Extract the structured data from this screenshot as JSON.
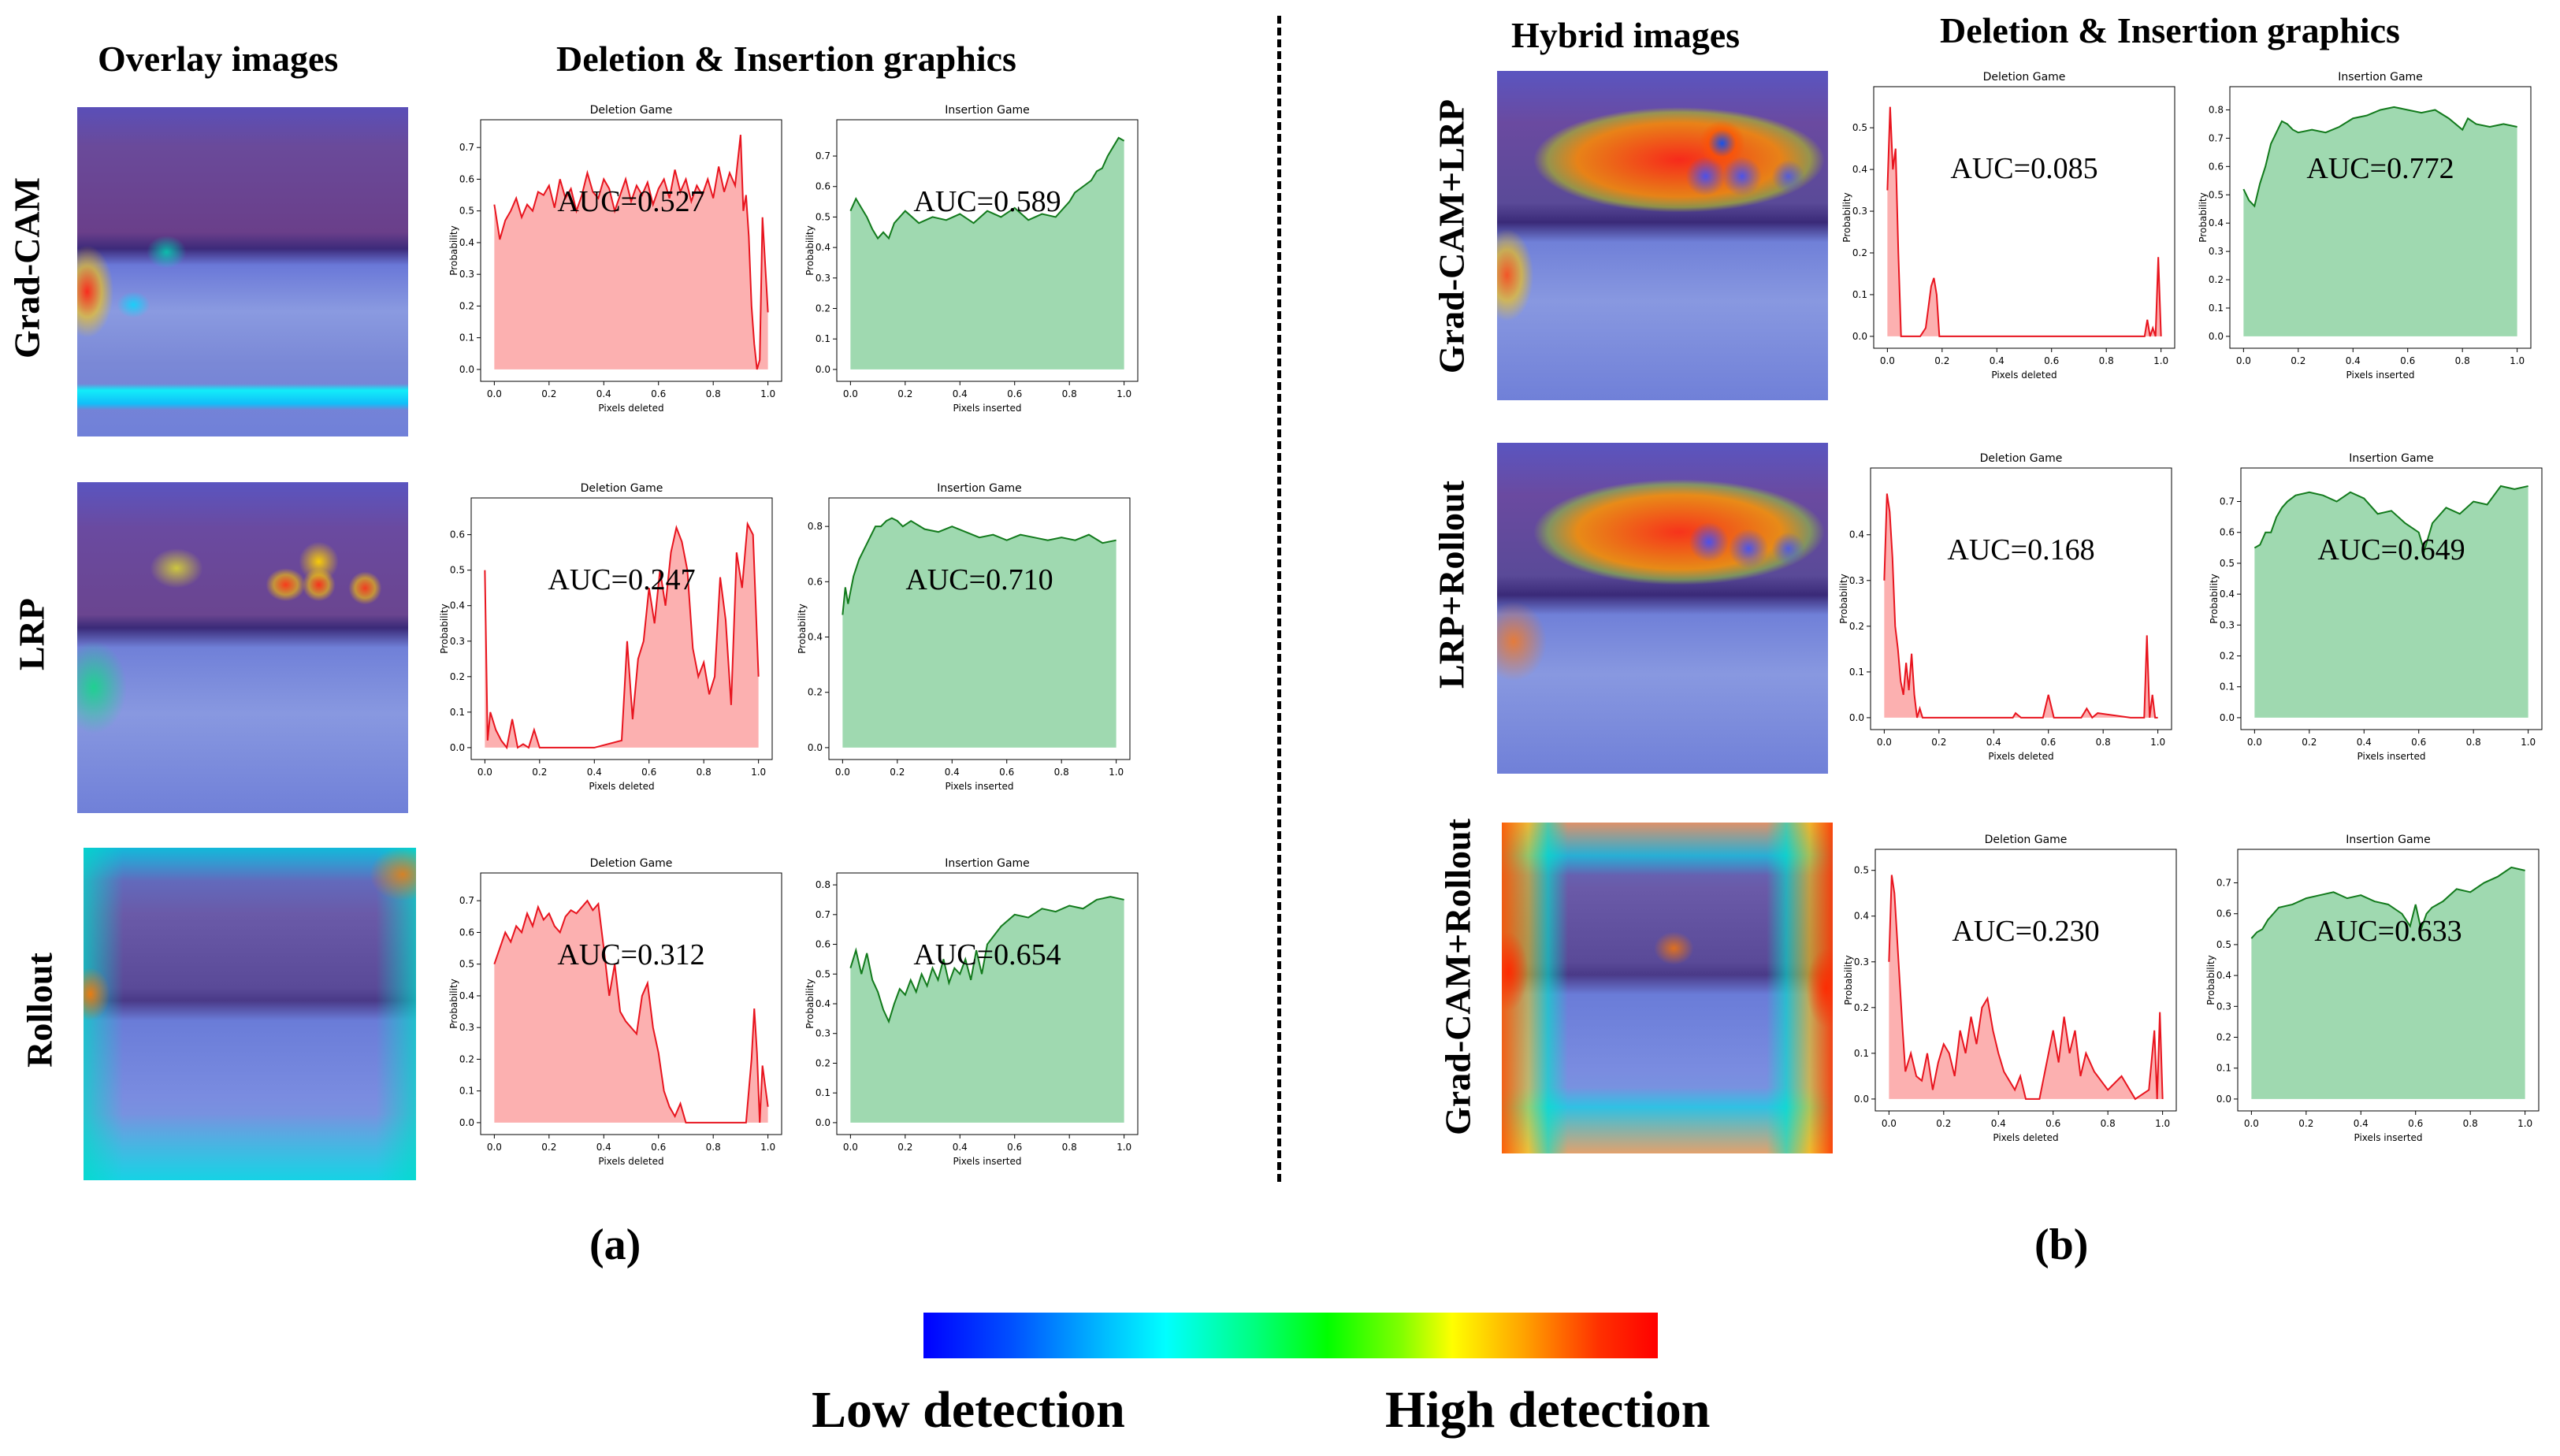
{
  "headers": {
    "overlay": "Overlay images",
    "deletion_insertion_a": "Deletion & Insertion graphics",
    "hybrid": "Hybrid images",
    "deletion_insertion_b": "Deletion & Insertion graphics"
  },
  "row_labels": {
    "gradcam": "Grad-CAM",
    "lrp": "LRP",
    "rollout": "Rollout",
    "gradcam_lrp": "Grad-CAM+LRP",
    "lrp_rollout": "LRP+Rollout",
    "gradcam_rollout": "Grad-CAM+Rollout"
  },
  "panel_labels": {
    "a": "(a)",
    "b": "(b)"
  },
  "colorbar": {
    "low": "Low detection",
    "high": "High detection"
  },
  "colors": {
    "deletion_line": "#e8141e",
    "deletion_fill": "#fcb0b0",
    "insertion_line": "#127a1c",
    "insertion_fill": "#9fd9b0"
  },
  "chart_data": [
    {
      "id": "del_gradcam",
      "type": "area",
      "title": "Deletion Game",
      "xlabel": "Pixels deleted",
      "ylabel": "Probability",
      "auc": "AUC=0.527",
      "xlim": [
        0,
        1
      ],
      "ylim": [
        0,
        0.75
      ],
      "yticks": [
        0.0,
        0.1,
        0.2,
        0.3,
        0.4,
        0.5,
        0.6,
        0.7
      ],
      "xticks": [
        0.0,
        0.2,
        0.4,
        0.6,
        0.8,
        1.0
      ],
      "x": [
        0,
        0.02,
        0.04,
        0.06,
        0.08,
        0.1,
        0.12,
        0.14,
        0.16,
        0.18,
        0.2,
        0.22,
        0.24,
        0.26,
        0.28,
        0.3,
        0.32,
        0.34,
        0.36,
        0.38,
        0.4,
        0.42,
        0.44,
        0.46,
        0.48,
        0.5,
        0.52,
        0.54,
        0.56,
        0.58,
        0.6,
        0.62,
        0.64,
        0.66,
        0.68,
        0.7,
        0.72,
        0.74,
        0.76,
        0.78,
        0.8,
        0.82,
        0.84,
        0.86,
        0.88,
        0.9,
        0.91,
        0.92,
        0.93,
        0.94,
        0.95,
        0.96,
        0.97,
        0.98,
        1.0
      ],
      "values": [
        0.52,
        0.41,
        0.47,
        0.5,
        0.54,
        0.48,
        0.52,
        0.5,
        0.56,
        0.55,
        0.58,
        0.51,
        0.6,
        0.54,
        0.57,
        0.5,
        0.55,
        0.62,
        0.56,
        0.54,
        0.6,
        0.57,
        0.5,
        0.55,
        0.6,
        0.53,
        0.58,
        0.55,
        0.59,
        0.52,
        0.57,
        0.6,
        0.54,
        0.63,
        0.56,
        0.6,
        0.53,
        0.58,
        0.55,
        0.6,
        0.54,
        0.64,
        0.56,
        0.62,
        0.58,
        0.74,
        0.5,
        0.55,
        0.42,
        0.2,
        0.08,
        0.0,
        0.03,
        0.48,
        0.18
      ]
    },
    {
      "id": "ins_gradcam",
      "type": "area",
      "title": "Insertion Game",
      "xlabel": "Pixels inserted",
      "ylabel": "Probability",
      "auc": "AUC=0.589",
      "xlim": [
        0,
        1
      ],
      "ylim": [
        0,
        0.78
      ],
      "yticks": [
        0.0,
        0.1,
        0.2,
        0.3,
        0.4,
        0.5,
        0.6,
        0.7
      ],
      "xticks": [
        0.0,
        0.2,
        0.4,
        0.6,
        0.8,
        1.0
      ],
      "x": [
        0,
        0.02,
        0.04,
        0.06,
        0.08,
        0.1,
        0.12,
        0.14,
        0.16,
        0.18,
        0.2,
        0.25,
        0.3,
        0.35,
        0.4,
        0.45,
        0.5,
        0.55,
        0.6,
        0.65,
        0.7,
        0.75,
        0.8,
        0.82,
        0.85,
        0.88,
        0.9,
        0.92,
        0.94,
        0.96,
        0.98,
        1.0
      ],
      "values": [
        0.52,
        0.56,
        0.53,
        0.5,
        0.46,
        0.43,
        0.45,
        0.43,
        0.48,
        0.5,
        0.52,
        0.48,
        0.5,
        0.49,
        0.51,
        0.48,
        0.52,
        0.5,
        0.53,
        0.49,
        0.51,
        0.5,
        0.55,
        0.58,
        0.6,
        0.62,
        0.65,
        0.66,
        0.7,
        0.73,
        0.76,
        0.75
      ]
    },
    {
      "id": "del_lrp",
      "type": "area",
      "title": "Deletion Game",
      "xlabel": "Pixels deleted",
      "ylabel": "Probability",
      "auc": "AUC=0.247",
      "xlim": [
        0,
        1
      ],
      "ylim": [
        0,
        0.67
      ],
      "yticks": [
        0.0,
        0.1,
        0.2,
        0.3,
        0.4,
        0.5,
        0.6
      ],
      "xticks": [
        0.0,
        0.2,
        0.4,
        0.6,
        0.8,
        1.0
      ],
      "x": [
        0,
        0.01,
        0.02,
        0.04,
        0.06,
        0.08,
        0.1,
        0.12,
        0.14,
        0.16,
        0.18,
        0.2,
        0.3,
        0.4,
        0.5,
        0.52,
        0.54,
        0.56,
        0.58,
        0.6,
        0.62,
        0.64,
        0.66,
        0.68,
        0.7,
        0.72,
        0.74,
        0.76,
        0.78,
        0.8,
        0.82,
        0.84,
        0.86,
        0.88,
        0.9,
        0.92,
        0.94,
        0.96,
        0.98,
        1.0
      ],
      "values": [
        0.5,
        0.02,
        0.1,
        0.05,
        0.02,
        0.0,
        0.08,
        0.0,
        0.01,
        0.0,
        0.05,
        0.0,
        0.0,
        0.0,
        0.02,
        0.3,
        0.08,
        0.25,
        0.3,
        0.45,
        0.35,
        0.5,
        0.4,
        0.55,
        0.62,
        0.58,
        0.5,
        0.28,
        0.2,
        0.24,
        0.15,
        0.2,
        0.48,
        0.36,
        0.12,
        0.55,
        0.45,
        0.63,
        0.6,
        0.2
      ]
    },
    {
      "id": "ins_lrp",
      "type": "area",
      "title": "Insertion Game",
      "xlabel": "Pixels inserted",
      "ylabel": "Probability",
      "auc": "AUC=0.710",
      "xlim": [
        0,
        1
      ],
      "ylim": [
        0,
        0.86
      ],
      "yticks": [
        0.0,
        0.2,
        0.4,
        0.6,
        0.8
      ],
      "xticks": [
        0.0,
        0.2,
        0.4,
        0.6,
        0.8,
        1.0
      ],
      "x": [
        0,
        0.01,
        0.02,
        0.04,
        0.06,
        0.08,
        0.1,
        0.12,
        0.14,
        0.16,
        0.18,
        0.2,
        0.22,
        0.25,
        0.3,
        0.35,
        0.4,
        0.45,
        0.5,
        0.55,
        0.6,
        0.65,
        0.7,
        0.75,
        0.8,
        0.85,
        0.9,
        0.95,
        1.0
      ],
      "values": [
        0.48,
        0.58,
        0.52,
        0.62,
        0.68,
        0.72,
        0.76,
        0.8,
        0.8,
        0.82,
        0.83,
        0.82,
        0.8,
        0.82,
        0.79,
        0.78,
        0.8,
        0.78,
        0.76,
        0.77,
        0.75,
        0.77,
        0.76,
        0.75,
        0.76,
        0.75,
        0.77,
        0.74,
        0.75
      ]
    },
    {
      "id": "del_rollout",
      "type": "area",
      "title": "Deletion Game",
      "xlabel": "Pixels deleted",
      "ylabel": "Probability",
      "auc": "AUC=0.312",
      "xlim": [
        0,
        1
      ],
      "ylim": [
        0,
        0.75
      ],
      "yticks": [
        0.0,
        0.1,
        0.2,
        0.3,
        0.4,
        0.5,
        0.6,
        0.7
      ],
      "xticks": [
        0.0,
        0.2,
        0.4,
        0.6,
        0.8,
        1.0
      ],
      "x": [
        0,
        0.02,
        0.04,
        0.06,
        0.08,
        0.1,
        0.12,
        0.14,
        0.16,
        0.18,
        0.2,
        0.22,
        0.24,
        0.26,
        0.28,
        0.3,
        0.32,
        0.34,
        0.36,
        0.38,
        0.4,
        0.42,
        0.44,
        0.46,
        0.48,
        0.5,
        0.52,
        0.54,
        0.56,
        0.58,
        0.6,
        0.62,
        0.64,
        0.66,
        0.68,
        0.7,
        0.75,
        0.8,
        0.85,
        0.9,
        0.92,
        0.94,
        0.95,
        0.96,
        0.97,
        0.98,
        1.0
      ],
      "values": [
        0.5,
        0.55,
        0.6,
        0.57,
        0.62,
        0.6,
        0.66,
        0.62,
        0.68,
        0.64,
        0.66,
        0.62,
        0.6,
        0.65,
        0.67,
        0.66,
        0.68,
        0.7,
        0.67,
        0.69,
        0.55,
        0.4,
        0.5,
        0.35,
        0.32,
        0.3,
        0.28,
        0.4,
        0.44,
        0.3,
        0.22,
        0.1,
        0.05,
        0.02,
        0.06,
        0.0,
        0.0,
        0.0,
        0.0,
        0.0,
        0.0,
        0.2,
        0.36,
        0.22,
        0.0,
        0.18,
        0.05
      ]
    },
    {
      "id": "ins_rollout",
      "type": "area",
      "title": "Insertion Game",
      "xlabel": "Pixels inserted",
      "ylabel": "Probability",
      "auc": "AUC=0.654",
      "xlim": [
        0,
        1
      ],
      "ylim": [
        0,
        0.8
      ],
      "yticks": [
        0.0,
        0.1,
        0.2,
        0.3,
        0.4,
        0.5,
        0.6,
        0.7,
        0.8
      ],
      "xticks": [
        0.0,
        0.2,
        0.4,
        0.6,
        0.8,
        1.0
      ],
      "x": [
        0,
        0.02,
        0.04,
        0.06,
        0.08,
        0.1,
        0.12,
        0.14,
        0.16,
        0.18,
        0.2,
        0.22,
        0.24,
        0.26,
        0.28,
        0.3,
        0.32,
        0.34,
        0.36,
        0.38,
        0.4,
        0.42,
        0.44,
        0.46,
        0.48,
        0.5,
        0.55,
        0.6,
        0.65,
        0.7,
        0.75,
        0.8,
        0.85,
        0.9,
        0.95,
        1.0
      ],
      "values": [
        0.52,
        0.58,
        0.5,
        0.57,
        0.48,
        0.44,
        0.38,
        0.34,
        0.4,
        0.45,
        0.43,
        0.48,
        0.44,
        0.5,
        0.46,
        0.52,
        0.48,
        0.55,
        0.47,
        0.52,
        0.5,
        0.55,
        0.48,
        0.58,
        0.5,
        0.6,
        0.66,
        0.7,
        0.69,
        0.72,
        0.71,
        0.73,
        0.72,
        0.75,
        0.76,
        0.75
      ]
    },
    {
      "id": "del_gradcam_lrp",
      "type": "area",
      "title": "Deletion Game",
      "xlabel": "Pixels deleted",
      "ylabel": "Probability",
      "auc": "AUC=0.085",
      "xlim": [
        0,
        1
      ],
      "ylim": [
        0,
        0.57
      ],
      "yticks": [
        0.0,
        0.1,
        0.2,
        0.3,
        0.4,
        0.5
      ],
      "xticks": [
        0.0,
        0.2,
        0.4,
        0.6,
        0.8,
        1.0
      ],
      "x": [
        0,
        0.01,
        0.02,
        0.03,
        0.04,
        0.05,
        0.06,
        0.08,
        0.1,
        0.12,
        0.14,
        0.16,
        0.17,
        0.18,
        0.19,
        0.2,
        0.3,
        0.5,
        0.7,
        0.9,
        0.94,
        0.95,
        0.96,
        0.97,
        0.98,
        0.99,
        1.0
      ],
      "values": [
        0.35,
        0.55,
        0.4,
        0.45,
        0.2,
        0.0,
        0.0,
        0.0,
        0.0,
        0.0,
        0.02,
        0.12,
        0.14,
        0.1,
        0.0,
        0.0,
        0.0,
        0.0,
        0.0,
        0.0,
        0.0,
        0.04,
        0.0,
        0.02,
        0.0,
        0.19,
        0.0
      ]
    },
    {
      "id": "ins_gradcam_lrp",
      "type": "area",
      "title": "Insertion Game",
      "xlabel": "Pixels inserted",
      "ylabel": "Probability",
      "auc": "AUC=0.772",
      "xlim": [
        0,
        1
      ],
      "ylim": [
        0,
        0.84
      ],
      "yticks": [
        0.0,
        0.1,
        0.2,
        0.3,
        0.4,
        0.5,
        0.6,
        0.7,
        0.8
      ],
      "xticks": [
        0.0,
        0.2,
        0.4,
        0.6,
        0.8,
        1.0
      ],
      "x": [
        0,
        0.02,
        0.04,
        0.06,
        0.08,
        0.1,
        0.12,
        0.14,
        0.16,
        0.18,
        0.2,
        0.25,
        0.3,
        0.35,
        0.4,
        0.45,
        0.5,
        0.55,
        0.6,
        0.65,
        0.7,
        0.75,
        0.8,
        0.82,
        0.85,
        0.9,
        0.95,
        1.0
      ],
      "values": [
        0.52,
        0.48,
        0.46,
        0.54,
        0.6,
        0.68,
        0.72,
        0.76,
        0.75,
        0.73,
        0.72,
        0.73,
        0.72,
        0.74,
        0.77,
        0.78,
        0.8,
        0.81,
        0.8,
        0.79,
        0.8,
        0.77,
        0.73,
        0.77,
        0.75,
        0.74,
        0.75,
        0.74
      ]
    },
    {
      "id": "del_lrp_rollout",
      "type": "area",
      "title": "Deletion Game",
      "xlabel": "Pixels deleted",
      "ylabel": "Probability",
      "auc": "AUC=0.168",
      "xlim": [
        0,
        1
      ],
      "ylim": [
        0,
        0.52
      ],
      "yticks": [
        0.0,
        0.1,
        0.2,
        0.3,
        0.4
      ],
      "xticks": [
        0.0,
        0.2,
        0.4,
        0.6,
        0.8,
        1.0
      ],
      "x": [
        0,
        0.01,
        0.02,
        0.03,
        0.04,
        0.05,
        0.06,
        0.07,
        0.08,
        0.09,
        0.1,
        0.11,
        0.12,
        0.13,
        0.14,
        0.2,
        0.4,
        0.47,
        0.48,
        0.5,
        0.58,
        0.6,
        0.62,
        0.65,
        0.72,
        0.74,
        0.76,
        0.78,
        0.9,
        0.95,
        0.96,
        0.97,
        0.98,
        0.99,
        1.0
      ],
      "values": [
        0.3,
        0.49,
        0.45,
        0.35,
        0.2,
        0.15,
        0.08,
        0.05,
        0.12,
        0.06,
        0.14,
        0.05,
        0.0,
        0.02,
        0.0,
        0.0,
        0.0,
        0.0,
        0.01,
        0.0,
        0.0,
        0.05,
        0.0,
        0.0,
        0.0,
        0.02,
        0.0,
        0.01,
        0.0,
        0.0,
        0.18,
        0.0,
        0.05,
        0.0,
        0.0
      ]
    },
    {
      "id": "ins_lrp_rollout",
      "type": "area",
      "title": "Insertion Game",
      "xlabel": "Pixels inserted",
      "ylabel": "Probability",
      "auc": "AUC=0.649",
      "xlim": [
        0,
        1
      ],
      "ylim": [
        0,
        0.77
      ],
      "yticks": [
        0.0,
        0.1,
        0.2,
        0.3,
        0.4,
        0.5,
        0.6,
        0.7
      ],
      "xticks": [
        0.0,
        0.2,
        0.4,
        0.6,
        0.8,
        1.0
      ],
      "x": [
        0,
        0.02,
        0.04,
        0.06,
        0.08,
        0.1,
        0.12,
        0.15,
        0.2,
        0.25,
        0.3,
        0.35,
        0.4,
        0.45,
        0.5,
        0.55,
        0.6,
        0.62,
        0.65,
        0.7,
        0.75,
        0.8,
        0.85,
        0.9,
        0.95,
        1.0
      ],
      "values": [
        0.55,
        0.56,
        0.6,
        0.6,
        0.65,
        0.68,
        0.7,
        0.72,
        0.73,
        0.72,
        0.7,
        0.73,
        0.71,
        0.66,
        0.67,
        0.63,
        0.6,
        0.54,
        0.63,
        0.68,
        0.66,
        0.7,
        0.69,
        0.75,
        0.74,
        0.75
      ]
    },
    {
      "id": "del_gradcam_rollout",
      "type": "area",
      "title": "Deletion Game",
      "xlabel": "Pixels deleted",
      "ylabel": "Probability",
      "auc": "AUC=0.230",
      "xlim": [
        0,
        1
      ],
      "ylim": [
        0,
        0.52
      ],
      "yticks": [
        0.0,
        0.1,
        0.2,
        0.3,
        0.4,
        0.5
      ],
      "xticks": [
        0.0,
        0.2,
        0.4,
        0.6,
        0.8,
        1.0
      ],
      "x": [
        0,
        0.01,
        0.02,
        0.03,
        0.04,
        0.05,
        0.06,
        0.08,
        0.1,
        0.12,
        0.14,
        0.16,
        0.18,
        0.2,
        0.22,
        0.24,
        0.26,
        0.28,
        0.3,
        0.32,
        0.34,
        0.36,
        0.38,
        0.4,
        0.42,
        0.44,
        0.46,
        0.48,
        0.5,
        0.55,
        0.6,
        0.62,
        0.64,
        0.66,
        0.68,
        0.7,
        0.72,
        0.75,
        0.8,
        0.85,
        0.9,
        0.95,
        0.97,
        0.98,
        0.99,
        1.0
      ],
      "values": [
        0.3,
        0.49,
        0.45,
        0.35,
        0.25,
        0.15,
        0.06,
        0.1,
        0.05,
        0.04,
        0.1,
        0.02,
        0.08,
        0.12,
        0.1,
        0.05,
        0.15,
        0.1,
        0.18,
        0.12,
        0.2,
        0.22,
        0.15,
        0.1,
        0.06,
        0.04,
        0.02,
        0.05,
        0.0,
        0.0,
        0.15,
        0.08,
        0.18,
        0.1,
        0.15,
        0.05,
        0.1,
        0.06,
        0.02,
        0.05,
        0.0,
        0.02,
        0.15,
        0.0,
        0.19,
        0.0
      ]
    },
    {
      "id": "ins_gradcam_rollout",
      "type": "area",
      "title": "Insertion Game",
      "xlabel": "Pixels inserted",
      "ylabel": "Probability",
      "auc": "AUC=0.633",
      "xlim": [
        0,
        1
      ],
      "ylim": [
        0,
        0.77
      ],
      "yticks": [
        0.0,
        0.1,
        0.2,
        0.3,
        0.4,
        0.5,
        0.6,
        0.7
      ],
      "xticks": [
        0.0,
        0.2,
        0.4,
        0.6,
        0.8,
        1.0
      ],
      "x": [
        0,
        0.02,
        0.04,
        0.06,
        0.08,
        0.1,
        0.15,
        0.2,
        0.25,
        0.3,
        0.35,
        0.4,
        0.45,
        0.5,
        0.55,
        0.58,
        0.6,
        0.62,
        0.64,
        0.66,
        0.7,
        0.75,
        0.8,
        0.85,
        0.9,
        0.95,
        1.0
      ],
      "values": [
        0.52,
        0.54,
        0.55,
        0.58,
        0.6,
        0.62,
        0.63,
        0.65,
        0.66,
        0.67,
        0.65,
        0.66,
        0.64,
        0.63,
        0.6,
        0.56,
        0.63,
        0.55,
        0.6,
        0.62,
        0.64,
        0.68,
        0.67,
        0.7,
        0.72,
        0.75,
        0.74
      ]
    }
  ]
}
